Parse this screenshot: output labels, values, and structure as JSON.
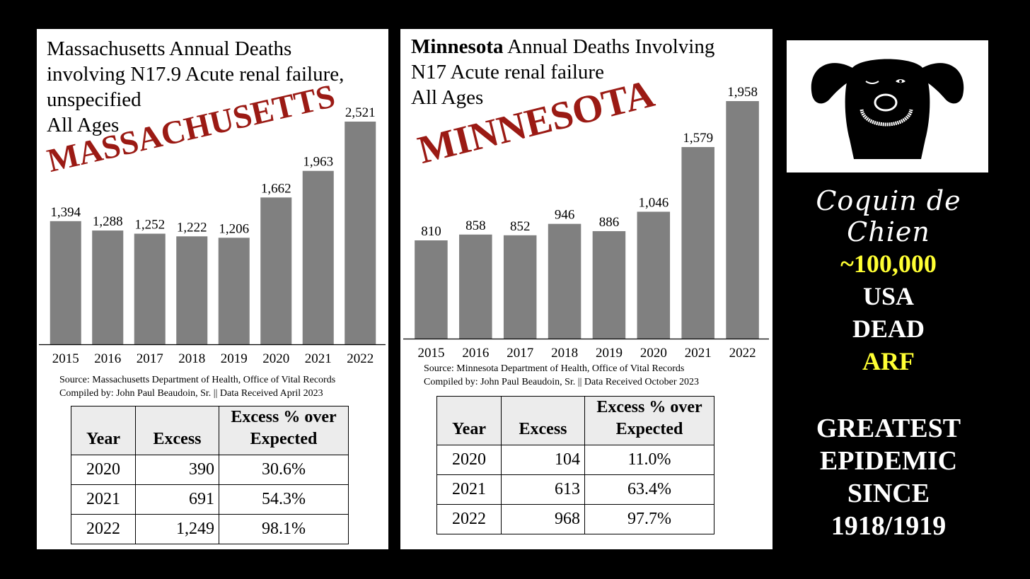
{
  "massachusetts": {
    "title_lines": [
      "Massachusetts Annual Deaths",
      "involving N17.9 Acute renal failure,",
      "unspecified",
      "All Ages"
    ],
    "stamp": "MASSACHUSETTS",
    "source_lines": [
      "Source:  Massachusetts Department of Health, Office of Vital Records",
      "Compiled by:  John Paul Beaudoin, Sr. || Data Received April 2023"
    ],
    "table": {
      "headers": [
        "Year",
        "Excess",
        "Excess % over Expected"
      ],
      "rows": [
        [
          "2020",
          "390",
          "30.6%"
        ],
        [
          "2021",
          "691",
          "54.3%"
        ],
        [
          "2022",
          "1,249",
          "98.1%"
        ]
      ]
    }
  },
  "minnesota": {
    "title_bold": "Minnesota",
    "title_rest": " Annual Deaths Involving",
    "title_lines": [
      "N17 Acute renal failure",
      "All Ages"
    ],
    "stamp": "MINNESOTA",
    "source_lines": [
      "Source:  Minnesota Department of Health, Office of Vital Records",
      "Compiled by:  John Paul Beaudoin, Sr. || Data Received October 2023"
    ],
    "table": {
      "headers": [
        "Year",
        "Excess",
        "Excess % over Expected"
      ],
      "rows": [
        [
          "2020",
          "104",
          "11.0%"
        ],
        [
          "2021",
          "613",
          "63.4%"
        ],
        [
          "2022",
          "968",
          "97.7%"
        ]
      ]
    }
  },
  "chart_data": [
    {
      "type": "bar",
      "title": "Massachusetts Annual Deaths involving N17.9 Acute renal failure, unspecified All Ages",
      "categories": [
        "2015",
        "2016",
        "2017",
        "2018",
        "2019",
        "2020",
        "2021",
        "2022"
      ],
      "values": [
        1394,
        1288,
        1252,
        1222,
        1206,
        1662,
        1963,
        2521
      ],
      "value_labels": [
        "1,394",
        "1,288",
        "1,252",
        "1,222",
        "1,206",
        "1,662",
        "1,963",
        "2,521"
      ],
      "ylim": [
        0,
        2521
      ],
      "bar_color": "#808080",
      "grid": false
    },
    {
      "type": "bar",
      "title": "Minnesota Annual Deaths Involving N17 Acute renal failure All Ages",
      "categories": [
        "2015",
        "2016",
        "2017",
        "2018",
        "2019",
        "2020",
        "2021",
        "2022"
      ],
      "values": [
        810,
        858,
        852,
        946,
        886,
        1046,
        1579,
        1958
      ],
      "value_labels": [
        "810",
        "858",
        "852",
        "946",
        "886",
        "1,046",
        "1,579",
        "1,958"
      ],
      "ylim": [
        0,
        1958
      ],
      "bar_color": "#808080",
      "grid": false
    }
  ],
  "sidebar": {
    "logo_icon": "dog-face-icon",
    "brand": "Coquin de Chien",
    "callout_lines": [
      "~100,000",
      "USA",
      "DEAD",
      "ARF"
    ],
    "headline_lines": [
      "GREATEST",
      "EPIDEMIC",
      "SINCE",
      "1918/1919"
    ],
    "colors": {
      "yellow": "#ffff33",
      "white": "#ffffff",
      "stamp_red": "#9b1a14"
    }
  }
}
